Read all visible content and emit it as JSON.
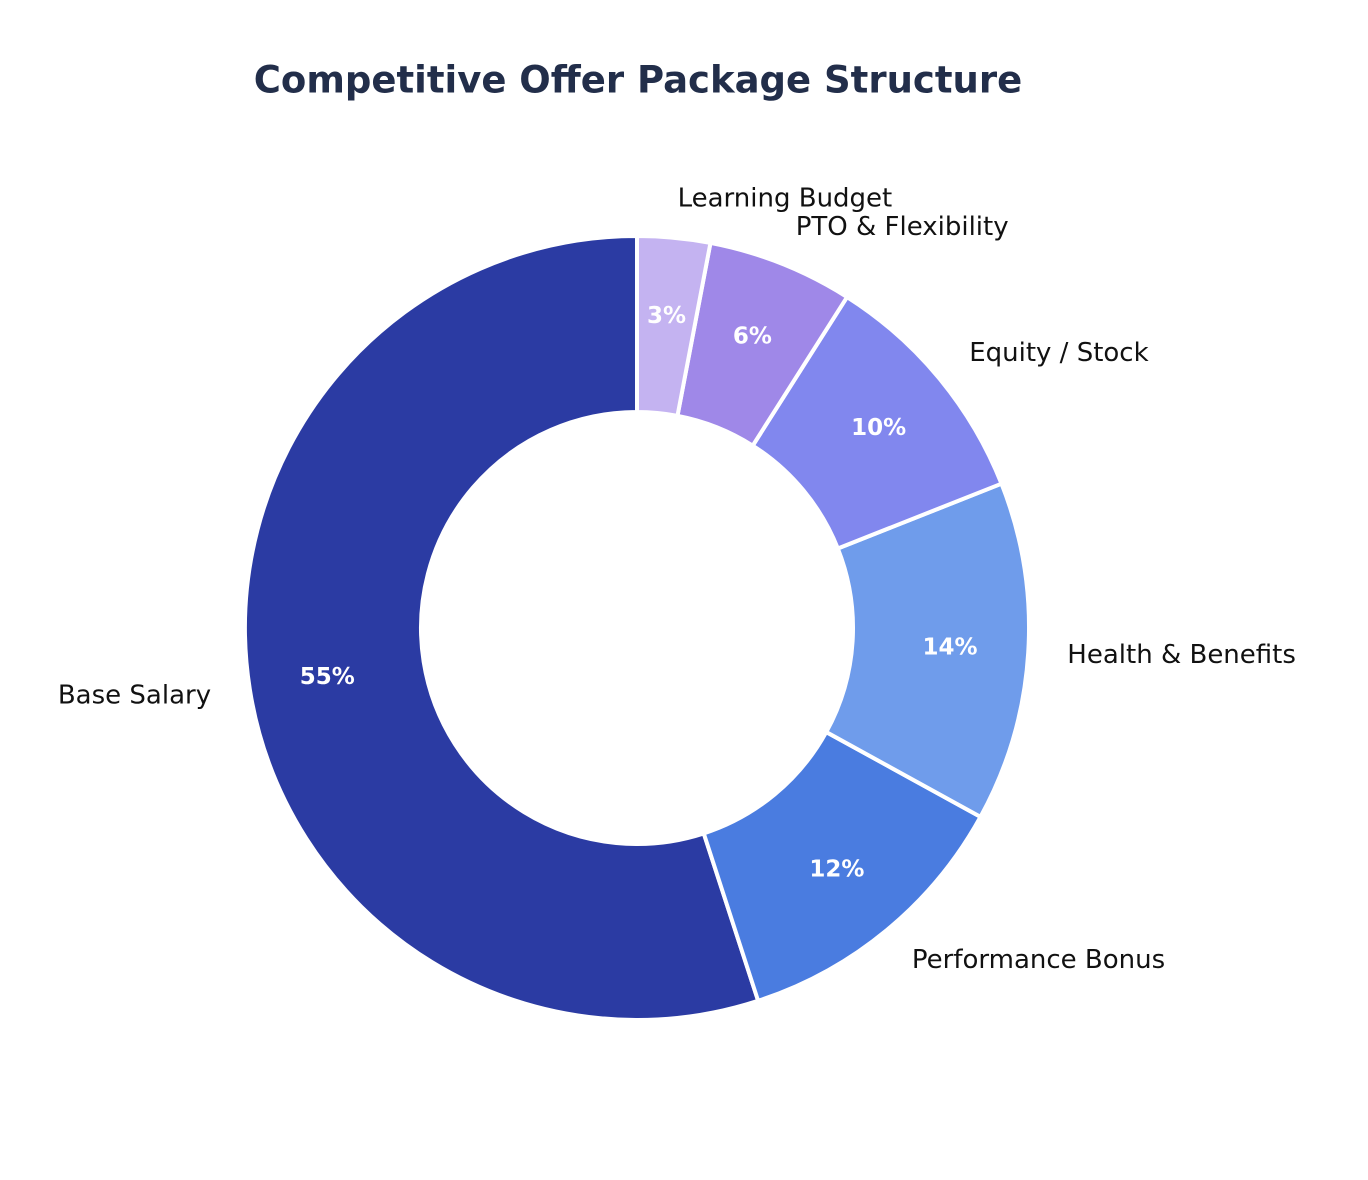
{
  "chart_data": {
    "type": "pie",
    "variant": "donut",
    "title": "Competitive Offer Package Structure",
    "start_angle_deg": 90,
    "direction": "counterclockwise",
    "legend": "none",
    "slices": [
      {
        "label": "Base Salary",
        "value": 55,
        "pct_label": "55%",
        "color": "#2B3BA3"
      },
      {
        "label": "Performance Bonus",
        "value": 12,
        "pct_label": "12%",
        "color": "#4A7CE0"
      },
      {
        "label": "Health & Benefits",
        "value": 14,
        "pct_label": "14%",
        "color": "#6F9CEB"
      },
      {
        "label": "Equity / Stock",
        "value": 10,
        "pct_label": "10%",
        "color": "#8187EE"
      },
      {
        "label": "PTO & Flexibility",
        "value": 6,
        "pct_label": "6%",
        "color": "#9F88E8"
      },
      {
        "label": "Learning Budget",
        "value": 3,
        "pct_label": "3%",
        "color": "#C4B3F1"
      }
    ],
    "styles": {
      "background_color": "#ffffff",
      "title_color": "#222E4A",
      "category_label_color": "#111111",
      "percent_label_color": "#ffffff",
      "slice_edge_color": "#ffffff"
    }
  }
}
